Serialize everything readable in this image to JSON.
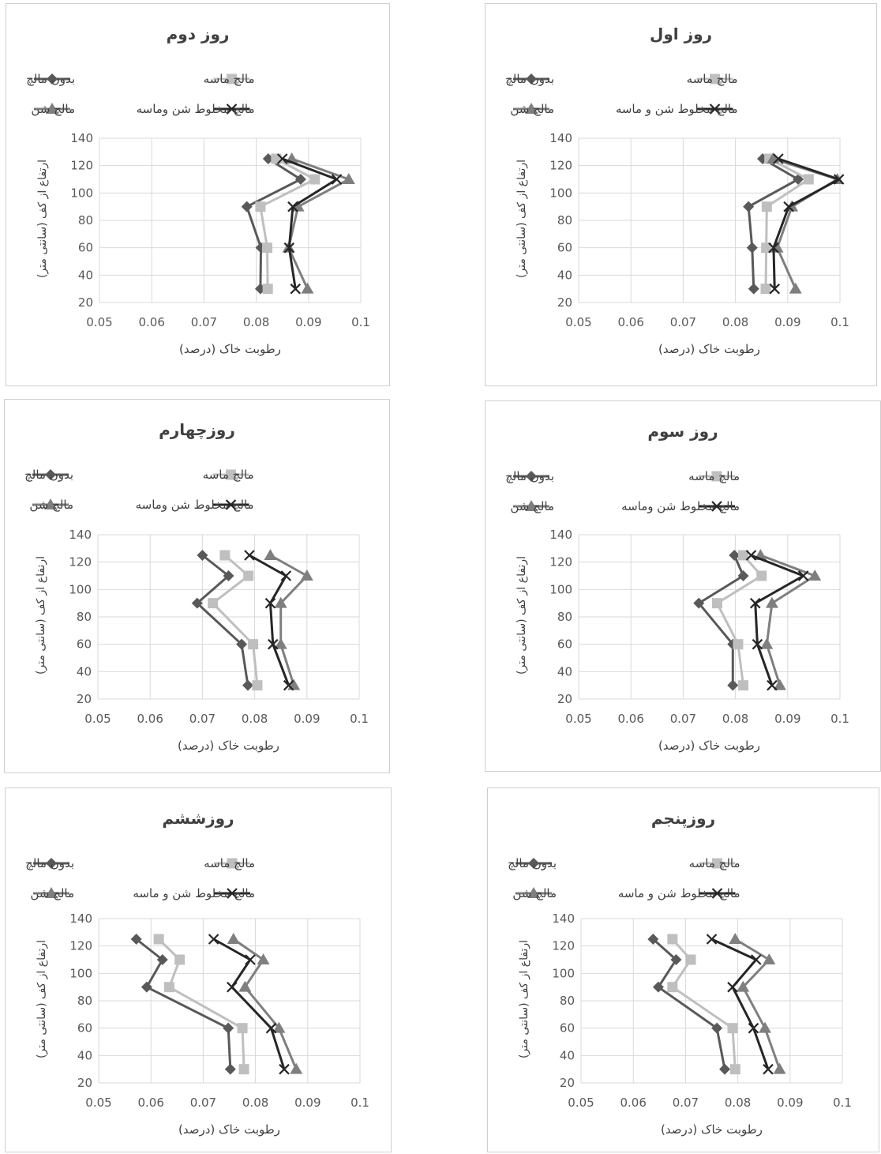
{
  "colors": {
    "bedoon": "#595959",
    "maseh": "#bfbfbf",
    "shen": "#7f7f7f",
    "makhloot": "#262626",
    "grid": "#d9d9d9"
  },
  "chart_data": [
    {
      "type": "line",
      "title": "روز دوم",
      "xlabel": "رطوبت خاک (درصد)",
      "ylabel": "ارتفاع از کف (سانتی متر)",
      "xlim": [
        0.05,
        0.1
      ],
      "ylim": [
        20,
        140
      ],
      "xticks": [
        "0.05",
        "0.06",
        "0.07",
        "0.08",
        "0.09",
        "0.1"
      ],
      "yticks": [
        "20",
        "40",
        "60",
        "80",
        "100",
        "120",
        "140"
      ],
      "legend": [
        "بدون مالچ",
        "مالچ ماسه",
        "مالچ شن",
        "مالچ مخلوط شن وماسه"
      ],
      "series": [
        {
          "name": "بدون مالچ",
          "marker": "diamond",
          "x": [
            0.0808,
            0.0809,
            0.0782,
            0.0885,
            0.0823
          ],
          "y": [
            30,
            60,
            90,
            110,
            125
          ]
        },
        {
          "name": "مالچ ماسه",
          "marker": "square",
          "x": [
            0.0822,
            0.0821,
            0.0808,
            0.0912,
            0.0838
          ],
          "y": [
            30,
            60,
            90,
            110,
            125
          ]
        },
        {
          "name": "مالچ شن",
          "marker": "triangle",
          "x": [
            0.0898,
            0.0862,
            0.088,
            0.0977,
            0.0868
          ],
          "y": [
            30,
            60,
            90,
            110,
            125
          ]
        },
        {
          "name": "مالچ مخلوط شن وماسه",
          "marker": "x",
          "x": [
            0.0875,
            0.0863,
            0.087,
            0.0954,
            0.085
          ],
          "y": [
            30,
            60,
            90,
            110,
            125
          ]
        }
      ]
    },
    {
      "type": "line",
      "title": "روز اول",
      "xlabel": "رطوبت خاک (درصد)",
      "ylabel": "ارتفاع از کف (سانتی متر)",
      "xlim": [
        0.05,
        0.1
      ],
      "ylim": [
        20,
        140
      ],
      "xticks": [
        "0.05",
        "0.06",
        "0.07",
        "0.08",
        "0.09",
        "0.1"
      ],
      "yticks": [
        "20",
        "40",
        "60",
        "80",
        "100",
        "120",
        "140"
      ],
      "legend": [
        "بدون مالچ",
        "مالچ ماسه",
        "مالچ شن",
        "مالچ مخلوط شن و ماسه"
      ],
      "series": [
        {
          "name": "بدون مالچ",
          "marker": "diamond",
          "x": [
            0.0835,
            0.0832,
            0.0825,
            0.092,
            0.0852
          ],
          "y": [
            30,
            60,
            90,
            110,
            125
          ]
        },
        {
          "name": "مالچ ماسه",
          "marker": "square",
          "x": [
            0.0858,
            0.0859,
            0.086,
            0.094,
            0.0865
          ],
          "y": [
            30,
            60,
            90,
            110,
            125
          ]
        },
        {
          "name": "مالچ شن",
          "marker": "triangle",
          "x": [
            0.0915,
            0.088,
            0.0908,
            0.0995,
            0.0872
          ],
          "y": [
            30,
            60,
            90,
            110,
            125
          ]
        },
        {
          "name": "مالچ مخلوط شن و ماسه",
          "marker": "x",
          "x": [
            0.0875,
            0.0873,
            0.0902,
            0.0998,
            0.0882
          ],
          "y": [
            30,
            60,
            90,
            110,
            125
          ]
        }
      ]
    },
    {
      "type": "line",
      "title": "روزچهارم",
      "xlabel": "رطوبت خاک (درصد)",
      "ylabel": "ارتفاع از کف (سانتی متر)",
      "xlim": [
        0.05,
        0.1
      ],
      "ylim": [
        20,
        140
      ],
      "xticks": [
        "0.05",
        "0.06",
        "0.07",
        "0.08",
        "0.09",
        "0.1"
      ],
      "yticks": [
        "20",
        "40",
        "60",
        "80",
        "100",
        "120",
        "140"
      ],
      "legend": [
        "بدون مالچ",
        "مالچ ماسه",
        "مالچ شن",
        "مالچ مخلوط شن وماسه"
      ],
      "series": [
        {
          "name": "بدون مالچ",
          "marker": "diamond",
          "x": [
            0.0787,
            0.0775,
            0.069,
            0.075,
            0.07
          ],
          "y": [
            30,
            60,
            90,
            110,
            125
          ]
        },
        {
          "name": "مالچ ماسه",
          "marker": "square",
          "x": [
            0.0805,
            0.0797,
            0.072,
            0.0788,
            0.0743
          ],
          "y": [
            30,
            60,
            90,
            110,
            125
          ]
        },
        {
          "name": "مالچ شن",
          "marker": "triangle",
          "x": [
            0.0875,
            0.085,
            0.085,
            0.09,
            0.083
          ],
          "y": [
            30,
            60,
            90,
            110,
            125
          ]
        },
        {
          "name": "مالچ مخلوط شن وماسه",
          "marker": "x",
          "x": [
            0.0865,
            0.0835,
            0.083,
            0.086,
            0.079
          ],
          "y": [
            30,
            60,
            90,
            110,
            125
          ]
        }
      ]
    },
    {
      "type": "line",
      "title": "روز سوم",
      "xlabel": "رطوبت خاک (درصد)",
      "ylabel": "ارتفاع از کف (سانتی متر)",
      "xlim": [
        0.05,
        0.1
      ],
      "ylim": [
        20,
        140
      ],
      "xticks": [
        "0.05",
        "0.06",
        "0.07",
        "0.08",
        "0.09",
        "0.1"
      ],
      "yticks": [
        "20",
        "40",
        "60",
        "80",
        "100",
        "120",
        "140"
      ],
      "legend": [
        "بدون مالچ",
        "مالچ ماسه",
        "مالچ شن",
        "مالچ مخلوط شن وماسه"
      ],
      "series": [
        {
          "name": "بدون مالچ",
          "marker": "diamond",
          "x": [
            0.0795,
            0.0795,
            0.073,
            0.0815,
            0.0798
          ],
          "y": [
            30,
            60,
            90,
            110,
            125
          ]
        },
        {
          "name": "مالچ ماسه",
          "marker": "square",
          "x": [
            0.0815,
            0.0805,
            0.0765,
            0.085,
            0.0815
          ],
          "y": [
            30,
            60,
            90,
            110,
            125
          ]
        },
        {
          "name": "مالچ شن",
          "marker": "triangle",
          "x": [
            0.0885,
            0.086,
            0.087,
            0.0952,
            0.0848
          ],
          "y": [
            30,
            60,
            90,
            110,
            125
          ]
        },
        {
          "name": "مالچ مخلوط شن وماسه",
          "marker": "x",
          "x": [
            0.087,
            0.0842,
            0.0838,
            0.093,
            0.083
          ],
          "y": [
            30,
            60,
            90,
            110,
            125
          ]
        }
      ]
    },
    {
      "type": "line",
      "title": "روزششم",
      "xlabel": "رطوبت خاک (درصد)",
      "ylabel": "ارتفاع از کف (سانتی متر)",
      "xlim": [
        0.05,
        0.1
      ],
      "ylim": [
        20,
        140
      ],
      "xticks": [
        "0.05",
        "0.06",
        "0.07",
        "0.08",
        "0.09",
        "0.1"
      ],
      "yticks": [
        "20",
        "40",
        "60",
        "80",
        "100",
        "120",
        "140"
      ],
      "legend": [
        "بدون مالچ",
        "مالچ ماسه",
        "مالچ شن",
        "مالچ مخلوط شن و ماسه"
      ],
      "series": [
        {
          "name": "بدون مالچ",
          "marker": "diamond",
          "x": [
            0.0752,
            0.0748,
            0.0592,
            0.0622,
            0.0572
          ],
          "y": [
            30,
            60,
            90,
            110,
            125
          ]
        },
        {
          "name": "مالچ ماسه",
          "marker": "square",
          "x": [
            0.0778,
            0.0775,
            0.0635,
            0.0655,
            0.0615
          ],
          "y": [
            30,
            60,
            90,
            110,
            125
          ]
        },
        {
          "name": "مالچ شن",
          "marker": "triangle",
          "x": [
            0.0878,
            0.0845,
            0.078,
            0.0815,
            0.0758
          ],
          "y": [
            30,
            60,
            90,
            110,
            125
          ]
        },
        {
          "name": "مالچ مخلوط شن و ماسه",
          "marker": "x",
          "x": [
            0.0855,
            0.083,
            0.0755,
            0.079,
            0.072
          ],
          "y": [
            30,
            60,
            90,
            110,
            125
          ]
        }
      ]
    },
    {
      "type": "line",
      "title": "روزپنجم",
      "xlabel": "رطوبت خاک (درصد)",
      "ylabel": "ارتفاع از کف (سانتی متر)",
      "xlim": [
        0.05,
        0.1
      ],
      "ylim": [
        20,
        140
      ],
      "xticks": [
        "0.05",
        "0.06",
        "0.07",
        "0.08",
        "0.09",
        "0.1"
      ],
      "yticks": [
        "20",
        "40",
        "60",
        "80",
        "100",
        "120",
        "140"
      ],
      "legend": [
        "بدون مالچ",
        "مالچ ماسه",
        "مالچ شن",
        "مالچ مخلوط شن و ماسه"
      ],
      "series": [
        {
          "name": "بدون مالچ",
          "marker": "diamond",
          "x": [
            0.0775,
            0.076,
            0.0648,
            0.0682,
            0.0638
          ],
          "y": [
            30,
            60,
            90,
            110,
            125
          ]
        },
        {
          "name": "مالچ ماسه",
          "marker": "square",
          "x": [
            0.0795,
            0.079,
            0.0675,
            0.071,
            0.0675
          ],
          "y": [
            30,
            60,
            90,
            110,
            125
          ]
        },
        {
          "name": "مالچ شن",
          "marker": "triangle",
          "x": [
            0.088,
            0.0852,
            0.081,
            0.086,
            0.0795
          ],
          "y": [
            30,
            60,
            90,
            110,
            125
          ]
        },
        {
          "name": "مالچ مخلوط شن و ماسه",
          "marker": "x",
          "x": [
            0.0858,
            0.083,
            0.079,
            0.0835,
            0.075
          ],
          "y": [
            30,
            60,
            90,
            110,
            125
          ]
        }
      ]
    }
  ]
}
